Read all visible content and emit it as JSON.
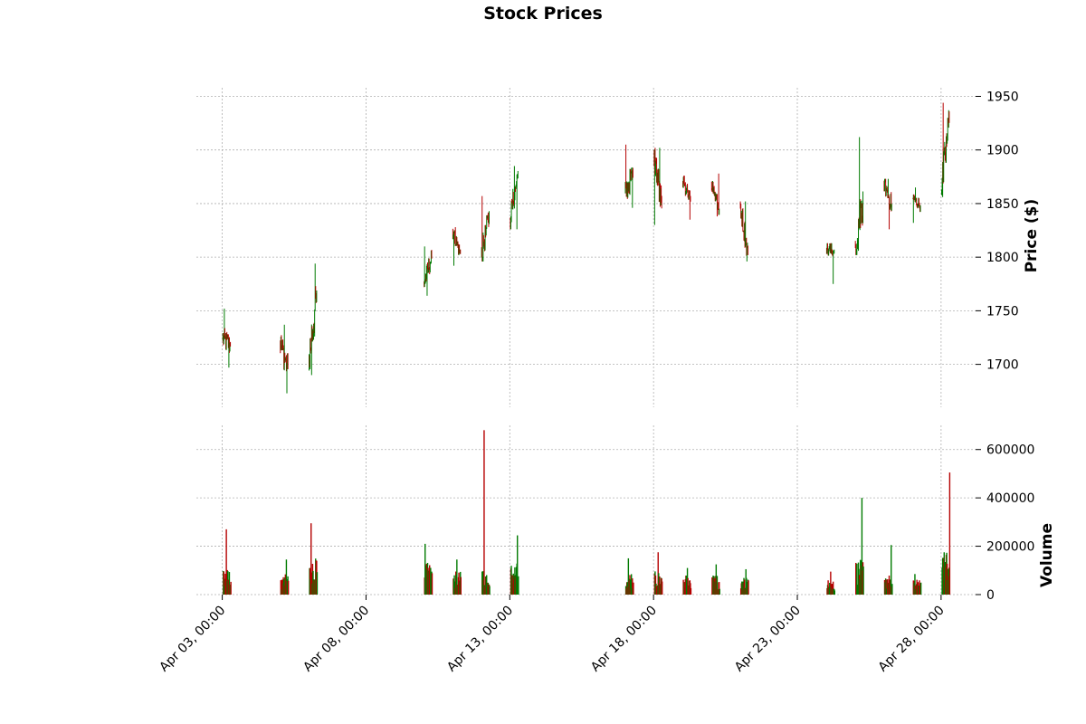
{
  "chart_data": {
    "type": "candlestick",
    "title": "Stock Prices",
    "price_panel": {
      "ylabel": "Price ($)",
      "ylim": [
        1660,
        1958
      ],
      "yticks": [
        1700,
        1750,
        1800,
        1850,
        1900,
        1950
      ]
    },
    "volume_panel": {
      "ylabel": "Volume",
      "ylim": [
        0,
        700000
      ],
      "yticks": [
        0,
        200000,
        400000,
        600000
      ],
      "ytick_labels": [
        "0",
        "200000",
        "400000",
        "600000"
      ]
    },
    "xlim": [
      -0.9,
      26.2
    ],
    "xticks": [
      {
        "label": "Apr 03, 00:00",
        "day": 0
      },
      {
        "label": "Apr 08, 00:00",
        "day": 5
      },
      {
        "label": "Apr 13, 00:00",
        "day": 10
      },
      {
        "label": "Apr 18, 00:00",
        "day": 15
      },
      {
        "label": "Apr 23, 00:00",
        "day": 20
      },
      {
        "label": "Apr 28, 00:00",
        "day": 25
      }
    ],
    "grid": true,
    "colors": {
      "up": "#007a00",
      "down": "#b50000"
    },
    "sessions": [
      {
        "day": 0,
        "open": 1725,
        "high": 1752,
        "low": 1697,
        "close": 1718,
        "vol_peak": 270000,
        "vol_base": 90000
      },
      {
        "day": 2,
        "open": 1722,
        "high": 1737,
        "low": 1673,
        "close": 1696,
        "vol_peak": 145000,
        "vol_base": 70000
      },
      {
        "day": 3,
        "open": 1700,
        "high": 1794,
        "low": 1690,
        "close": 1765,
        "vol_peak": 295000,
        "vol_base": 150000
      },
      {
        "day": 7,
        "open": 1775,
        "high": 1810,
        "low": 1764,
        "close": 1800,
        "vol_peak": 210000,
        "vol_base": 110000
      },
      {
        "day": 8,
        "open": 1825,
        "high": 1828,
        "low": 1792,
        "close": 1803,
        "vol_peak": 145000,
        "vol_base": 80000
      },
      {
        "day": 9,
        "open": 1800,
        "high": 1857,
        "low": 1796,
        "close": 1840,
        "vol_peak": 680000,
        "vol_base": 90000
      },
      {
        "day": 10,
        "open": 1835,
        "high": 1885,
        "low": 1826,
        "close": 1878,
        "vol_peak": 245000,
        "vol_base": 110000
      },
      {
        "day": 14,
        "open": 1860,
        "high": 1905,
        "low": 1846,
        "close": 1877,
        "vol_peak": 150000,
        "vol_base": 80000
      },
      {
        "day": 15,
        "open": 1898,
        "high": 1902,
        "low": 1830,
        "close": 1847,
        "vol_peak": 175000,
        "vol_base": 80000
      },
      {
        "day": 16,
        "open": 1870,
        "high": 1876,
        "low": 1835,
        "close": 1852,
        "vol_peak": 110000,
        "vol_base": 70000
      },
      {
        "day": 17,
        "open": 1870,
        "high": 1878,
        "low": 1838,
        "close": 1843,
        "vol_peak": 125000,
        "vol_base": 70000
      },
      {
        "day": 18,
        "open": 1850,
        "high": 1852,
        "low": 1796,
        "close": 1802,
        "vol_peak": 105000,
        "vol_base": 65000
      },
      {
        "day": 21,
        "open": 1808,
        "high": 1813,
        "low": 1775,
        "close": 1805,
        "vol_peak": 95000,
        "vol_base": 50000
      },
      {
        "day": 22,
        "open": 1810,
        "high": 1912,
        "low": 1802,
        "close": 1855,
        "vol_peak": 400000,
        "vol_base": 120000
      },
      {
        "day": 23,
        "open": 1870,
        "high": 1873,
        "low": 1826,
        "close": 1848,
        "vol_peak": 205000,
        "vol_base": 70000
      },
      {
        "day": 24,
        "open": 1855,
        "high": 1865,
        "low": 1832,
        "close": 1848,
        "vol_peak": 85000,
        "vol_base": 55000
      },
      {
        "day": 25,
        "open": 1860,
        "high": 1944,
        "low": 1856,
        "close": 1930,
        "vol_peak": 505000,
        "vol_base": 160000
      }
    ]
  }
}
